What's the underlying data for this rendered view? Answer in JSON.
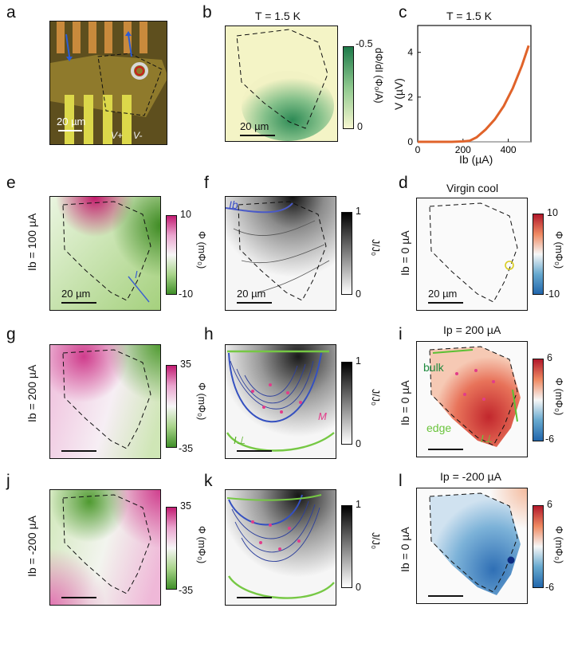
{
  "labels": {
    "a": "a",
    "b": "b",
    "c": "c",
    "d": "d",
    "e": "e",
    "f": "f",
    "g": "g",
    "h": "h",
    "i": "i",
    "j": "j",
    "k": "k",
    "l": "l"
  },
  "scalebar": "20 µm",
  "panel_a": {
    "vplus": "V+",
    "vminus": "V-"
  },
  "panel_b": {
    "title": "T = 1.5 K",
    "cbar_top": "-0.5",
    "cbar_bottom": "0",
    "cbar_label": "dΦ/dI (Φ₀/A)"
  },
  "panel_c": {
    "title": "T = 1.5 K",
    "ylabel": "V (µV)",
    "xlabel": "Ib (µA)"
  },
  "panel_d": {
    "title": "Virgin cool",
    "ylabel": "Ib = 0 µA",
    "cbar_top": "10",
    "cbar_bottom": "-10",
    "cbar_label": "Φ (mΦ₀)"
  },
  "panel_e": {
    "ylabel": "Ib = 100 µA",
    "cbar_top": "10",
    "cbar_bottom": "-10",
    "cbar_label": "Φ (mΦ₀)",
    "ann": "I"
  },
  "panel_f": {
    "ann": "Ib",
    "cbar_top": "1",
    "cbar_bottom": "0",
    "cbar_label": "J/J₀"
  },
  "panel_g": {
    "ylabel": "Ib = 200 µA",
    "cbar_top": "35",
    "cbar_bottom": "-35",
    "cbar_label": "Φ (mΦ₀)"
  },
  "panel_h": {
    "ann_M": "M",
    "ann_I": "I⊥",
    "cbar_top": "1",
    "cbar_bottom": "0",
    "cbar_label": "J/J₀"
  },
  "panel_i": {
    "title": "Ip = 200 µA",
    "ylabel": "Ib = 0 µA",
    "bulk": "bulk",
    "edge": "edge",
    "ann_I": "I⊥",
    "cbar_top": "6",
    "cbar_bottom": "-6",
    "cbar_label": "Φ (mΦ₀)"
  },
  "panel_j": {
    "ylabel": "Ib = -200 µA",
    "cbar_top": "35",
    "cbar_bottom": "-35",
    "cbar_label": "Φ (mΦ₀)"
  },
  "panel_k": {
    "cbar_top": "1",
    "cbar_bottom": "0",
    "cbar_label": "J/J₀"
  },
  "panel_l": {
    "title": "Ip = -200 µA",
    "ylabel": "Ib = 0 µA",
    "cbar_top": "6",
    "cbar_bottom": "-6",
    "cbar_label": "Φ (mΦ₀)"
  },
  "chart_data": {
    "type": "line",
    "title": "T = 1.5 K",
    "xlabel": "Ib (µA)",
    "ylabel": "V (µV)",
    "xlim": [
      0,
      500
    ],
    "ylim": [
      0,
      5.2
    ],
    "xticks": [
      0,
      200,
      400
    ],
    "yticks": [
      0,
      2,
      4
    ],
    "x": [
      0,
      50,
      100,
      150,
      200,
      230,
      260,
      300,
      340,
      380,
      420,
      460,
      490
    ],
    "y": [
      0.0,
      0.0,
      0.0,
      0.0,
      0.02,
      0.05,
      0.2,
      0.55,
      1.0,
      1.6,
      2.4,
      3.4,
      4.3
    ],
    "color": "#e0632a"
  }
}
